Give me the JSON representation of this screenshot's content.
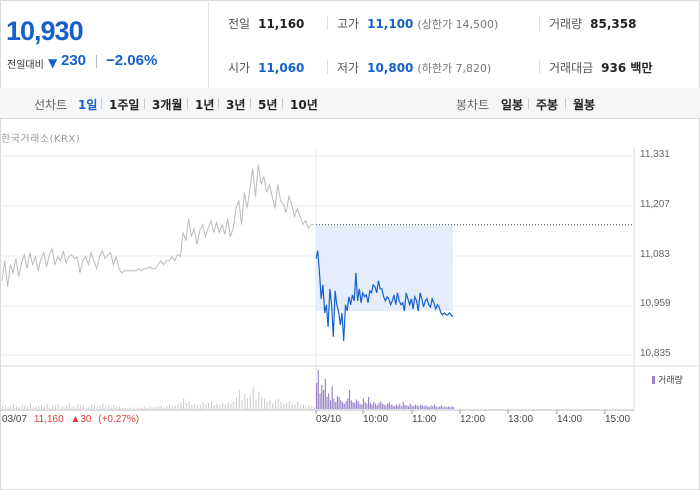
{
  "summary": {
    "price": "10,930",
    "change_label": "전일대비",
    "change_arrow": "▼",
    "change_value": "230",
    "change_rate": "−2.06%",
    "stats": {
      "prev_close": {
        "label": "전일",
        "value": "11,160"
      },
      "high": {
        "label": "고가",
        "value": "11,100",
        "sub": "(상한가 14,500)"
      },
      "volume": {
        "label": "거래량",
        "value": "85,358"
      },
      "open": {
        "label": "시가",
        "value": "11,060"
      },
      "low": {
        "label": "저가",
        "value": "10,800",
        "sub": "(하한가 7,820)"
      },
      "amount": {
        "label": "거래대금",
        "value": "936 백만"
      }
    }
  },
  "toolbar": {
    "line_label": "선차트",
    "line_periods": [
      "1일",
      "1주일",
      "3개월",
      "1년",
      "3년",
      "5년",
      "10년"
    ],
    "candle_label": "봉차트",
    "candle_periods": [
      "일봉",
      "주봉",
      "월봉"
    ]
  },
  "source": "한국거래소(KRX)",
  "colors": {
    "accent": "#1560c9",
    "up": "#e03c3c",
    "prev_line": "#bbbbbb",
    "volume": "#9a86c9",
    "highlight": "#e4edf9"
  },
  "chart_data": {
    "type": "line",
    "y_ticks": [
      "11,331",
      "11,207",
      "11,083",
      "10,959",
      "10,835"
    ],
    "ylim": [
      10835,
      11331
    ],
    "x_ticks": [
      "03/10",
      "10:00",
      "11:00",
      "12:00",
      "13:00",
      "14:00",
      "15:00"
    ],
    "prev_close_reference": 11160,
    "prev_day": {
      "date": "03/07",
      "close": "11,160",
      "change": "30",
      "change_rate": "(+0.27%)",
      "values": [
        11020,
        11070,
        11005,
        11060,
        11040,
        11075,
        11030,
        11065,
        11085,
        11050,
        11090,
        11060,
        11080,
        11045,
        11075,
        11090,
        11055,
        11085,
        11100,
        11060,
        11080,
        11070,
        11095,
        11065,
        11080,
        11085,
        11075,
        11080,
        11040,
        11070,
        11080,
        11060,
        11090,
        11070,
        11050,
        11080,
        11095,
        11075,
        11085,
        11090,
        11060,
        11080,
        11050,
        11040,
        11045,
        11045,
        11045,
        11045,
        11045,
        11050,
        11045,
        11050,
        11050,
        11055,
        11050,
        11050,
        11060,
        11070,
        11060,
        11070,
        11070,
        11080,
        11070,
        11085,
        11080,
        11140,
        11120,
        11175,
        11130,
        11150,
        11110,
        11145,
        11160,
        11130,
        11150,
        11170,
        11140,
        11165,
        11140,
        11160,
        11135,
        11175,
        11130,
        11150,
        11200,
        11220,
        11160,
        11240,
        11200,
        11250,
        11300,
        11230,
        11310,
        11260,
        11280,
        11240,
        11260,
        11230,
        11200,
        11260,
        11220,
        11210,
        11190,
        11230,
        11210,
        11180,
        11200,
        11180,
        11160,
        11170,
        11150,
        11160,
        11160
      ],
      "volume": [
        3,
        5,
        2,
        4,
        6,
        3,
        2,
        5,
        4,
        3,
        7,
        2,
        3,
        4,
        5,
        3,
        6,
        2,
        4,
        3,
        5,
        2,
        3,
        4,
        6,
        3,
        2,
        5,
        3,
        4,
        2,
        3,
        5,
        4,
        2,
        3,
        6,
        3,
        4,
        2,
        5,
        3,
        2,
        1,
        1,
        1,
        2,
        1,
        1,
        2,
        1,
        2,
        1,
        3,
        2,
        2,
        3,
        4,
        2,
        3,
        5,
        3,
        4,
        6,
        8,
        12,
        7,
        9,
        5,
        6,
        4,
        5,
        8,
        6,
        7,
        9,
        5,
        6,
        4,
        7,
        5,
        8,
        6,
        9,
        14,
        22,
        10,
        18,
        12,
        16,
        25,
        11,
        20,
        14,
        12,
        8,
        10,
        7,
        9,
        12,
        8,
        6,
        7,
        9,
        6,
        5,
        8,
        4,
        5,
        3,
        4,
        3,
        2
      ]
    },
    "today": {
      "values": [
        11075,
        11095,
        11040,
        10975,
        11010,
        10940,
        10960,
        10905,
        11000,
        10960,
        10880,
        10995,
        10960,
        10945,
        10910,
        10940,
        10870,
        10960,
        10945,
        10980,
        10960,
        10985,
        10970,
        11040,
        10970,
        11000,
        10965,
        10990,
        10980,
        10985,
        10965,
        10995,
        10990,
        11010,
        11005,
        10990,
        11020,
        11000,
        11000,
        10980,
        10970,
        10980,
        10975,
        10960,
        10970,
        10985,
        10960,
        10990,
        10970,
        10960,
        10965,
        10945,
        10990,
        10975,
        10960,
        10975,
        10950,
        10980,
        10970,
        10945,
        10990,
        10975,
        10955,
        10970,
        10975,
        10960,
        10955,
        10975,
        10965,
        10950,
        10960,
        10955,
        10940,
        10935,
        10940,
        10935,
        10935,
        10940,
        10935,
        10930
      ],
      "volume": [
        30,
        45,
        18,
        28,
        22,
        35,
        14,
        18,
        10,
        26,
        12,
        8,
        15,
        14,
        10,
        8,
        6,
        9,
        12,
        22,
        10,
        8,
        7,
        11,
        9,
        6,
        5,
        12,
        8,
        6,
        14,
        7,
        5,
        8,
        6,
        4,
        7,
        9,
        6,
        5,
        4,
        6,
        8,
        5,
        4,
        3,
        5,
        4,
        6,
        3,
        8,
        5,
        4,
        3,
        6,
        4,
        3,
        5,
        4,
        3,
        5,
        4,
        3,
        4,
        3,
        2,
        4,
        3,
        5,
        3,
        2,
        3,
        4,
        2,
        3,
        2,
        3,
        2,
        3,
        2
      ]
    }
  }
}
